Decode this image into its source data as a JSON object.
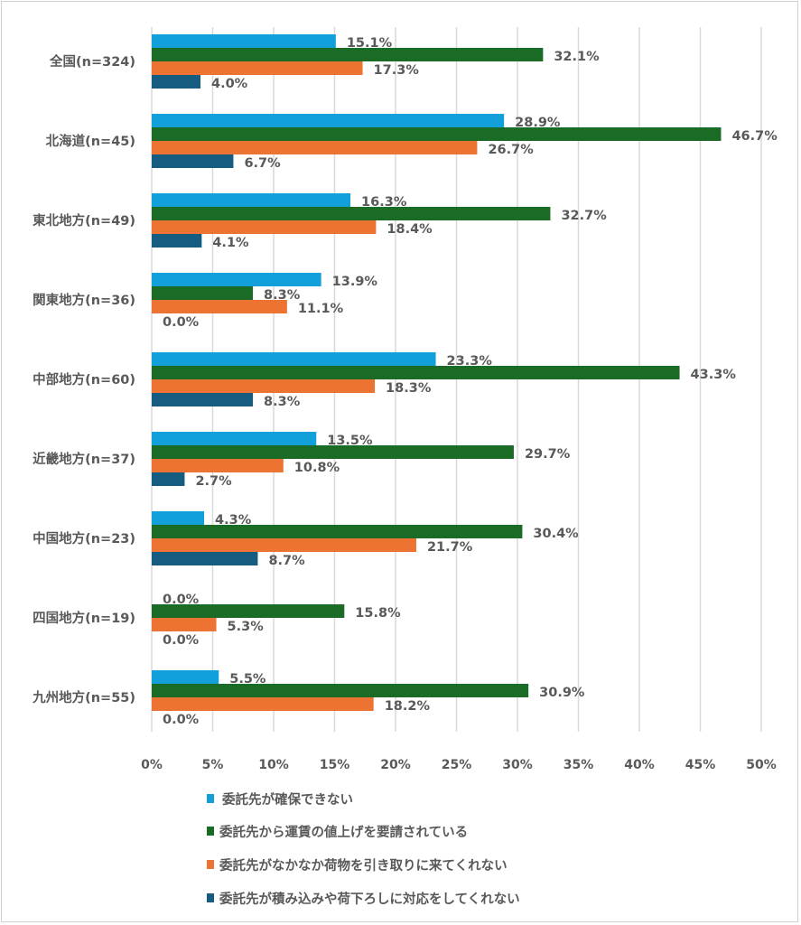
{
  "chart_data": {
    "type": "bar",
    "orientation": "horizontal",
    "title": "",
    "xlabel": "",
    "ylabel": "",
    "xlim": [
      0,
      50
    ],
    "x_ticks": [
      "0%",
      "5%",
      "10%",
      "15%",
      "20%",
      "25%",
      "30%",
      "35%",
      "40%",
      "45%",
      "50%"
    ],
    "grid": "vertical",
    "legend_position": "bottom",
    "categories": [
      "全国(n=324)",
      "北海道(n=45)",
      "東北地方(n=49)",
      "関東地方(n=36)",
      "中部地方(n=60)",
      "近畿地方(n=37)",
      "中国地方(n=23)",
      "四国地方(n=19)",
      "九州地方(n=55)"
    ],
    "series": [
      {
        "name": "委託先が確保できない",
        "color": "#139fd9",
        "values": [
          15.1,
          28.9,
          16.3,
          13.9,
          23.3,
          13.5,
          4.3,
          0.0,
          5.5
        ]
      },
      {
        "name": "委託先から運賃の値上げを要請されている",
        "color": "#1a6b25",
        "values": [
          32.1,
          46.7,
          32.7,
          8.3,
          43.3,
          29.7,
          30.4,
          15.8,
          30.9
        ]
      },
      {
        "name": "委託先がなかなか荷物を引き取りに来てくれない",
        "color": "#ec7331",
        "values": [
          17.3,
          26.7,
          18.4,
          11.1,
          18.3,
          10.8,
          21.7,
          5.3,
          18.2
        ]
      },
      {
        "name": "委託先が積み込みや荷下ろしに対応をしてくれない",
        "color": "#155c80",
        "values": [
          4.0,
          6.7,
          4.1,
          0.0,
          8.3,
          2.7,
          8.7,
          0.0,
          0.0
        ]
      }
    ]
  }
}
